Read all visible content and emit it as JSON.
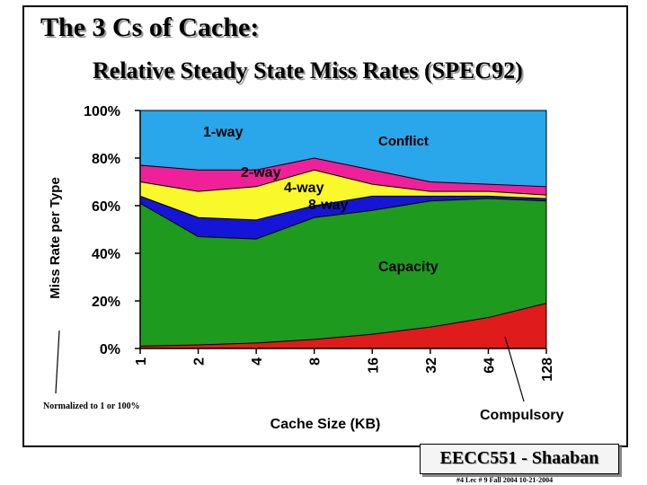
{
  "slide": {
    "title": "The 3 Cs of Cache:",
    "subtitle": "Relative Steady State Miss Rates (SPEC92)",
    "footer_title": "EECC551 - Shaaban",
    "footer_line": "#4  Lec # 9  Fall 2004   10-21-2004"
  },
  "chart_data": {
    "type": "area",
    "title": "",
    "xlabel": "Cache Size (KB)",
    "ylabel": "Miss Rate per Type",
    "categories": [
      "1",
      "2",
      "4",
      "8",
      "16",
      "32",
      "64",
      "128"
    ],
    "ylim": [
      0,
      100
    ],
    "yticks": [
      0,
      20,
      40,
      60,
      80,
      100
    ],
    "ytick_labels": [
      "0%",
      "20%",
      "40%",
      "60%",
      "80%",
      "100%"
    ],
    "grid": false,
    "note": "Normalized to 1 or 100%",
    "series": [
      {
        "name": "Compulsory",
        "color": "#e01b1b",
        "values": [
          1,
          1.5,
          2.3,
          3.8,
          6,
          9,
          13,
          19
        ]
      },
      {
        "name": "Capacity",
        "color": "#1e9a1e",
        "values": [
          61,
          47,
          46,
          55,
          58,
          62,
          63,
          62
        ]
      },
      {
        "name": "8-way",
        "color": "#1515d8",
        "values": [
          64,
          55,
          54,
          60,
          64,
          64,
          64,
          63
        ]
      },
      {
        "name": "4-way",
        "color": "#f8f82a",
        "values": [
          70,
          66,
          68,
          75,
          69,
          66,
          66,
          64.5
        ]
      },
      {
        "name": "2-way",
        "color": "#f0209a",
        "values": [
          77,
          75,
          75,
          80,
          75,
          70,
          69,
          68
        ]
      },
      {
        "name": "1-way",
        "color": "#2aa6ea",
        "values": [
          100,
          100,
          100,
          100,
          100,
          100,
          100,
          100
        ]
      }
    ],
    "annotations": {
      "one_way": "1-way",
      "conflict": "Conflict",
      "two_way": "2-way",
      "four_way": "4-way",
      "eight_way": "8-way",
      "capacity": "Capacity",
      "compulsory": "Compulsory"
    }
  }
}
